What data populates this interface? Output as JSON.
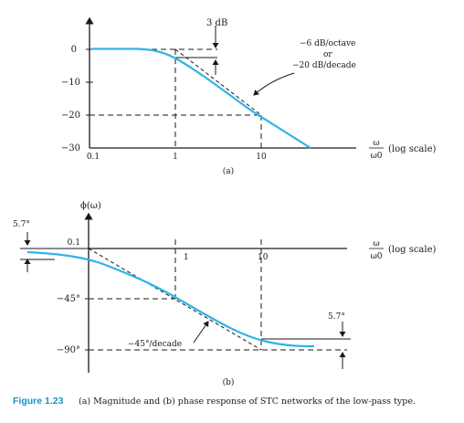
{
  "top_plot": {
    "ticks_y": [
      "0",
      "−10",
      "−20",
      "−30"
    ],
    "ticks_x": [
      "0.1",
      "1",
      "10"
    ],
    "annotation_3db": "3 dB",
    "slope_label": [
      "−6 dB/octave",
      "or",
      "−20 dB/decade"
    ],
    "axis_omega_num": "ω",
    "axis_omega_den": "ω0",
    "axis_scale": "(log scale)",
    "panel_label": "(a)"
  },
  "bottom_plot": {
    "y_axis_label": "ϕ(ω)",
    "ticks_y": [
      "−45°",
      "−90°"
    ],
    "ticks_x": [
      "0.1",
      "1",
      "10"
    ],
    "left_offset": "5.7°",
    "right_offset": "5.7°",
    "slope_label": "−45°/decade",
    "axis_omega_num": "ω",
    "axis_omega_den": "ω0",
    "axis_scale": "(log scale)",
    "panel_label": "(b)"
  },
  "caption": {
    "figure": "Figure 1.23",
    "text": "(a) Magnitude and (b) phase response of STC networks of the low-pass type."
  },
  "colors": {
    "curve": "#2fb3e8",
    "axis": "#1a1a1a",
    "caption_accent": "#1e8fc7"
  }
}
